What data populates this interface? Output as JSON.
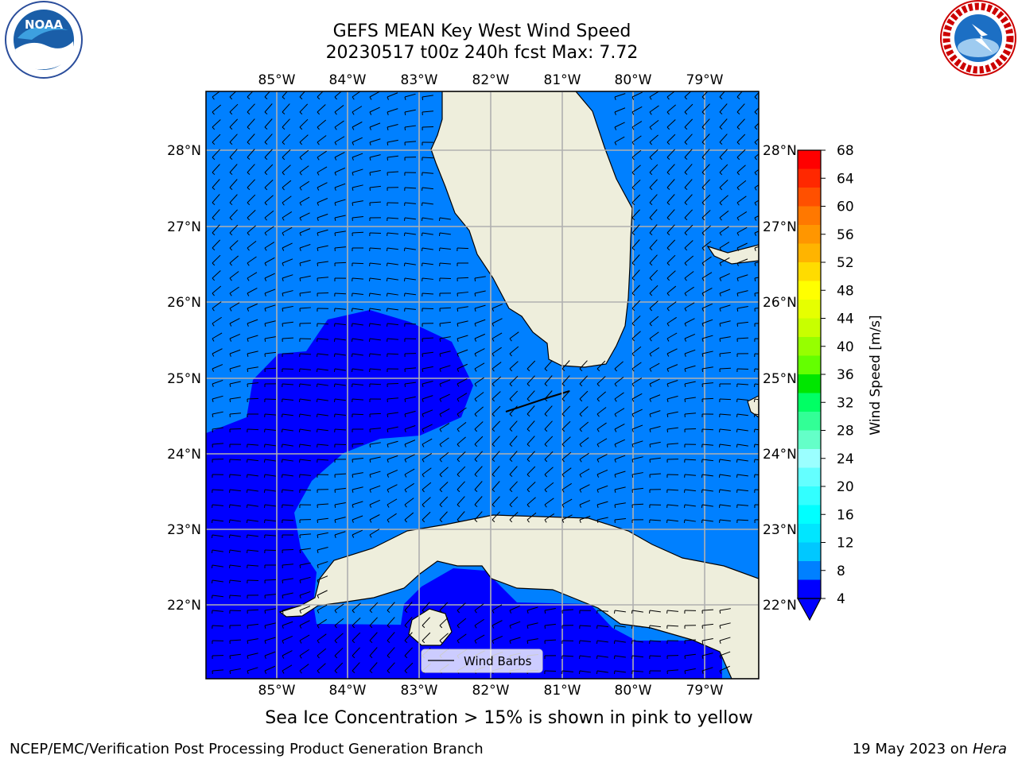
{
  "title": {
    "line1": "GEFS MEAN Key West Wind Speed",
    "line2": "20230517 t00z 240h fcst   Max: 7.72"
  },
  "logos": {
    "left": {
      "name": "noaa-logo",
      "text": "NOAA"
    },
    "right": {
      "name": "nws-logo",
      "text": "NATIONAL WEATHER SERVICE"
    }
  },
  "map": {
    "lon_labels": [
      "85°W",
      "84°W",
      "83°W",
      "82°W",
      "81°W",
      "80°W",
      "79°W"
    ],
    "lat_labels": [
      "28°N",
      "27°N",
      "26°N",
      "25°N",
      "24°N",
      "23°N",
      "22°N"
    ],
    "colors": {
      "land": "#eeeedc",
      "band_4_8": "#0080ff",
      "band_below_4": "#0000ff",
      "grid": "#b0b0b0",
      "barb": "#000000"
    },
    "legend": {
      "label": "Wind Barbs"
    }
  },
  "colorbar": {
    "label": "Wind Speed [m/s]",
    "ticks": [
      "68",
      "64",
      "60",
      "56",
      "52",
      "48",
      "44",
      "40",
      "36",
      "32",
      "28",
      "24",
      "20",
      "16",
      "12",
      "8",
      "4"
    ],
    "colors": [
      "#ff0000",
      "#ff2800",
      "#ff5000",
      "#ff7800",
      "#ff9600",
      "#ffb400",
      "#ffdc00",
      "#ffff00",
      "#e6ff00",
      "#c8ff00",
      "#96ff00",
      "#64ff00",
      "#00e600",
      "#00ff64",
      "#32ff96",
      "#64ffc8",
      "#9bffff",
      "#64ffff",
      "#32ffff",
      "#00ffff",
      "#00e6ff",
      "#00c8ff",
      "#0080ff",
      "#0000ff"
    ]
  },
  "caption": "Sea Ice Concentration > 15% is shown in pink to yellow",
  "footer": {
    "left": "NCEP/EMC/Verification Post Processing Product Generation Branch",
    "right_prefix": "19 May 2023 on ",
    "right_host": "Hera"
  }
}
